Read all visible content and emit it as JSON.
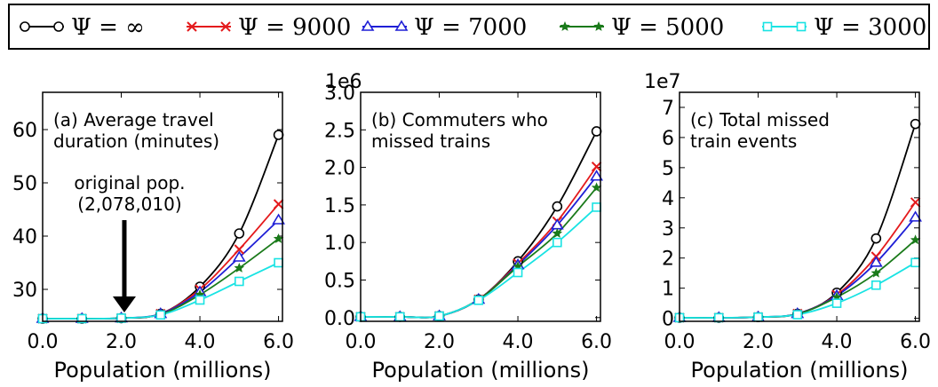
{
  "legend": {
    "entries": [
      {
        "label": "Ψ = ∞",
        "color": "#000000",
        "marker": "circle-open"
      },
      {
        "label": "Ψ = 9000",
        "color": "#e41a1c",
        "marker": "x"
      },
      {
        "label": "Ψ = 7000",
        "color": "#1f1fd6",
        "marker": "triangle-open"
      },
      {
        "label": "Ψ = 5000",
        "color": "#1a7a1a",
        "marker": "star"
      },
      {
        "label": "Ψ = 3000",
        "color": "#19e3e3",
        "marker": "square-open"
      }
    ]
  },
  "chart_data": [
    {
      "type": "line",
      "annotation": "(a) Average travel duration (minutes)",
      "annotation_lines": [
        "(a) Average travel",
        "duration (minutes)"
      ],
      "xlabel": "Population (millions)",
      "ylabel": "",
      "xlim": [
        0,
        6.1
      ],
      "ylim": [
        24,
        67
      ],
      "x_ticks": [
        0,
        2,
        4,
        6
      ],
      "x_tick_labels": [
        "0.0",
        "2.0",
        "4.0",
        "6.0"
      ],
      "y_ticks": [
        30,
        40,
        50,
        60
      ],
      "y_tick_labels": [
        "30",
        "40",
        "50",
        "60"
      ],
      "exponent_label": "",
      "arrow_note": {
        "lines": [
          "original pop.",
          "(2,078,010)"
        ],
        "x": 2.078,
        "y_from": 43,
        "y_to": 24.5
      },
      "x": [
        0,
        1,
        2,
        3,
        4,
        5,
        6
      ],
      "series": [
        {
          "name": "Ψ = ∞",
          "values": [
            24.5,
            24.5,
            24.6,
            25.4,
            30.5,
            40.5,
            59.0
          ]
        },
        {
          "name": "Ψ = 9000",
          "values": [
            24.5,
            24.5,
            24.6,
            25.4,
            30.0,
            37.5,
            46.0
          ]
        },
        {
          "name": "Ψ = 7000",
          "values": [
            24.5,
            24.5,
            24.6,
            25.4,
            29.5,
            36.0,
            43.0
          ]
        },
        {
          "name": "Ψ = 5000",
          "values": [
            24.5,
            24.5,
            24.6,
            25.3,
            29.0,
            34.0,
            39.5
          ]
        },
        {
          "name": "Ψ = 3000",
          "values": [
            24.5,
            24.5,
            24.6,
            25.2,
            28.0,
            31.5,
            35.0
          ]
        }
      ]
    },
    {
      "type": "line",
      "annotation": "(b) Commuters who missed trains",
      "annotation_lines": [
        "(b) Commuters who",
        "missed trains"
      ],
      "xlabel": "Population (millions)",
      "ylabel": "",
      "xlim": [
        0,
        6.1
      ],
      "ylim": [
        -0.05,
        3.0
      ],
      "x_ticks": [
        0,
        2,
        4,
        6
      ],
      "x_tick_labels": [
        "0.0",
        "2.0",
        "4.0",
        "6.0"
      ],
      "y_ticks": [
        0,
        0.5,
        1.0,
        1.5,
        2.0,
        2.5,
        3.0
      ],
      "y_tick_labels": [
        "0.0",
        "0.5",
        "1.0",
        "1.5",
        "2.0",
        "2.5",
        "3.0"
      ],
      "exponent_label": "1e6",
      "x": [
        0,
        1,
        2,
        3,
        4,
        5,
        6
      ],
      "series": [
        {
          "name": "Ψ = ∞",
          "values": [
            0.01,
            0.01,
            0.02,
            0.24,
            0.75,
            1.48,
            2.48
          ]
        },
        {
          "name": "Ψ = 9000",
          "values": [
            0.01,
            0.01,
            0.02,
            0.24,
            0.72,
            1.28,
            2.01
          ]
        },
        {
          "name": "Ψ = 7000",
          "values": [
            0.01,
            0.01,
            0.02,
            0.24,
            0.7,
            1.23,
            1.88
          ]
        },
        {
          "name": "Ψ = 5000",
          "values": [
            0.01,
            0.01,
            0.02,
            0.24,
            0.68,
            1.12,
            1.73
          ]
        },
        {
          "name": "Ψ = 3000",
          "values": [
            0.01,
            0.01,
            0.02,
            0.23,
            0.6,
            1.0,
            1.47
          ]
        }
      ]
    },
    {
      "type": "line",
      "annotation": "(c) Total missed train events",
      "annotation_lines": [
        "(c) Total missed",
        "train events"
      ],
      "xlabel": "Population (millions)",
      "ylabel": "",
      "xlim": [
        0,
        6.1
      ],
      "ylim": [
        -0.1,
        7.5
      ],
      "x_ticks": [
        0,
        2,
        4,
        6
      ],
      "x_tick_labels": [
        "0.0",
        "2.0",
        "4.0",
        "6.0"
      ],
      "y_ticks": [
        0,
        1,
        2,
        3,
        4,
        5,
        6,
        7
      ],
      "y_tick_labels": [
        "0",
        "1",
        "2",
        "3",
        "4",
        "5",
        "6",
        "7"
      ],
      "exponent_label": "1e7",
      "x": [
        0,
        1,
        2,
        3,
        4,
        5,
        6
      ],
      "series": [
        {
          "name": "Ψ = ∞",
          "values": [
            0.02,
            0.02,
            0.04,
            0.15,
            0.85,
            2.65,
            6.45
          ]
        },
        {
          "name": "Ψ = 9000",
          "values": [
            0.02,
            0.02,
            0.04,
            0.15,
            0.78,
            2.05,
            3.85
          ]
        },
        {
          "name": "Ψ = 7000",
          "values": [
            0.02,
            0.02,
            0.04,
            0.15,
            0.75,
            1.85,
            3.35
          ]
        },
        {
          "name": "Ψ = 5000",
          "values": [
            0.02,
            0.02,
            0.04,
            0.14,
            0.7,
            1.5,
            2.6
          ]
        },
        {
          "name": "Ψ = 3000",
          "values": [
            0.02,
            0.02,
            0.04,
            0.12,
            0.5,
            1.1,
            1.85
          ]
        }
      ]
    }
  ]
}
